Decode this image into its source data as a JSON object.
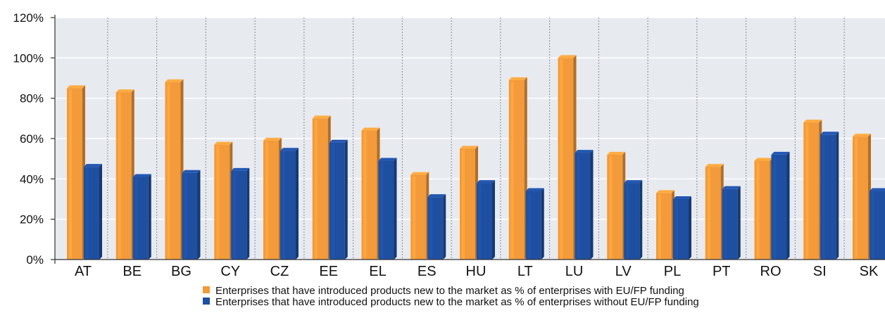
{
  "colors": {
    "series_1": "#f39a3a",
    "series_2": "#1e4fa0",
    "plot_background": "#e7eaef",
    "grid_horizontal": "#ffffff",
    "grid_vertical": "#8a8f99",
    "axis": "#333333"
  },
  "chart_data": {
    "type": "bar",
    "categories": [
      "AT",
      "BE",
      "BG",
      "CY",
      "CZ",
      "EE",
      "EL",
      "ES",
      "HU",
      "LT",
      "LU",
      "LV",
      "PL",
      "PT",
      "RO",
      "SI",
      "SK"
    ],
    "series": [
      {
        "name": "Enterprises that have introduced products new to the market as % of enterprises with EU/FP funding",
        "values": [
          85,
          83,
          88,
          57,
          59,
          70,
          64,
          42,
          55,
          89,
          100,
          52,
          33,
          46,
          49,
          68,
          61
        ]
      },
      {
        "name": "Enterprises that have introduced products new to the market as % of enterprises without EU/FP funding",
        "values": [
          46,
          41,
          43,
          44,
          54,
          58,
          49,
          31,
          38,
          34,
          53,
          38,
          30,
          35,
          52,
          62,
          34
        ]
      }
    ],
    "yticks": [
      "0%",
      "20%",
      "40%",
      "60%",
      "80%",
      "100%",
      "120%"
    ],
    "ylim": [
      0,
      120
    ],
    "title": "",
    "xlabel": "",
    "ylabel": "",
    "legend_position": "bottom",
    "grid": true
  }
}
